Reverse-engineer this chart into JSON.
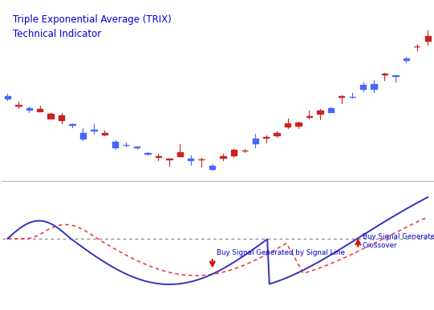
{
  "title": "Triple Exponential Average (TRIX)\nTechnical Indicator",
  "title_color": "#0000CC",
  "title_fontsize": 8.5,
  "bg_color": "#FFFFFF",
  "candle_up_color": "#4466FF",
  "candle_dn_color": "#CC2222",
  "indicator_line_color": "#3333BB",
  "signal_line_color": "#EE3333",
  "centerline_color": "#888888",
  "arrow_color": "#DD0000",
  "text_color": "#0000CC",
  "annotation_centerline": "Buy Signal Generated by Centerline\nCrossover",
  "annotation_signal": "Buy Signal Generated by Signal Line",
  "candle_count": 40,
  "bar_width": 0.55
}
